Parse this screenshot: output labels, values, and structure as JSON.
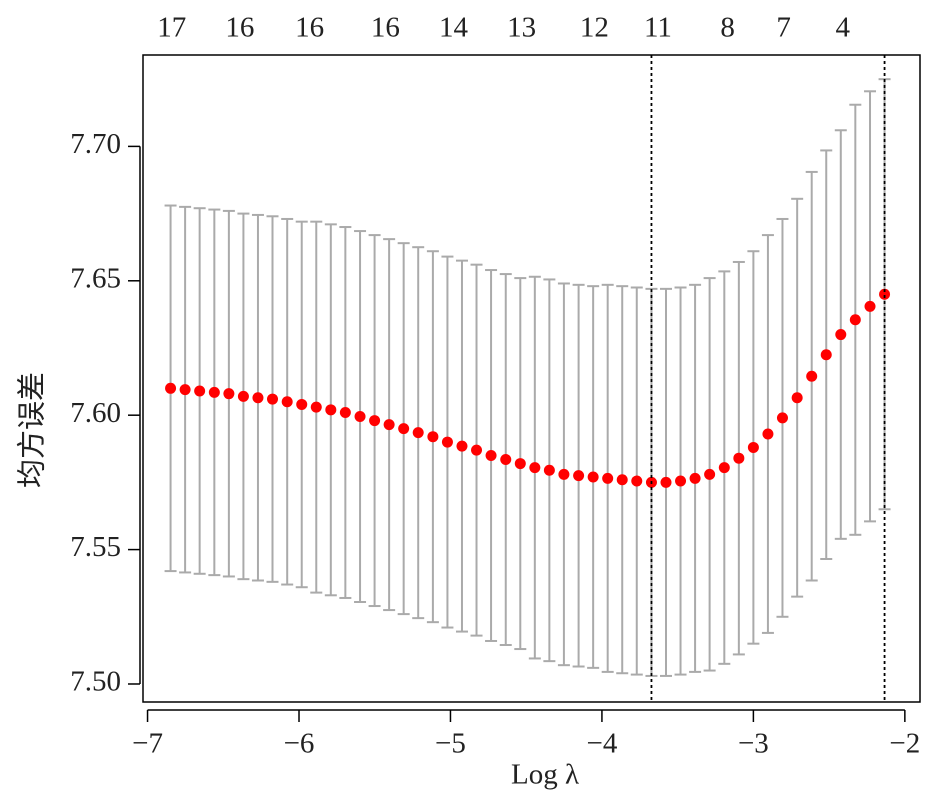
{
  "chart_data": {
    "type": "errorbar_scatter",
    "xlabel": "Log λ",
    "ylabel": "均方误差",
    "x": [
      -6.848,
      -6.752,
      -6.656,
      -6.559,
      -6.463,
      -6.367,
      -6.271,
      -6.175,
      -6.078,
      -5.982,
      -5.886,
      -5.79,
      -5.694,
      -5.597,
      -5.501,
      -5.405,
      -5.309,
      -5.213,
      -5.116,
      -5.02,
      -4.924,
      -4.828,
      -4.732,
      -4.635,
      -4.539,
      -4.443,
      -4.347,
      -4.251,
      -4.154,
      -4.058,
      -3.962,
      -3.866,
      -3.77,
      -3.673,
      -3.577,
      -3.481,
      -3.385,
      -3.289,
      -3.192,
      -3.096,
      -3.0,
      -2.904,
      -2.808,
      -2.711,
      -2.615,
      -2.519,
      -2.423,
      -2.327,
      -2.23,
      -2.134
    ],
    "series": [
      {
        "color": "#ff0000",
        "error_color": "#aaaaaa",
        "values": [
          7.61,
          7.6095,
          7.609,
          7.6085,
          7.608,
          7.607,
          7.6065,
          7.606,
          7.605,
          7.604,
          7.603,
          7.602,
          7.601,
          7.5995,
          7.598,
          7.5965,
          7.595,
          7.5935,
          7.592,
          7.59,
          7.5885,
          7.587,
          7.585,
          7.5835,
          7.582,
          7.5805,
          7.5795,
          7.578,
          7.5775,
          7.577,
          7.5765,
          7.576,
          7.5755,
          7.575,
          7.575,
          7.5755,
          7.5765,
          7.578,
          7.5805,
          7.584,
          7.588,
          7.593,
          7.599,
          7.6065,
          7.6145,
          7.6225,
          7.63,
          7.6355,
          7.6405,
          7.645
        ],
        "errors": [
          0.068,
          0.068,
          0.068,
          0.068,
          0.068,
          0.068,
          0.068,
          0.068,
          0.068,
          0.068,
          0.069,
          0.069,
          0.069,
          0.069,
          0.069,
          0.069,
          0.069,
          0.069,
          0.069,
          0.069,
          0.069,
          0.069,
          0.069,
          0.069,
          0.069,
          0.071,
          0.071,
          0.071,
          0.071,
          0.071,
          0.072,
          0.072,
          0.072,
          0.072,
          0.072,
          0.072,
          0.072,
          0.073,
          0.073,
          0.073,
          0.073,
          0.074,
          0.074,
          0.074,
          0.076,
          0.076,
          0.076,
          0.08,
          0.08,
          0.08
        ]
      }
    ],
    "vlines": [
      -3.673,
      -2.134
    ],
    "xlim": [
      -7.03,
      -1.9
    ],
    "ylim": [
      7.4933,
      7.734
    ],
    "xticks": [
      {
        "value": -7,
        "label": "−7"
      },
      {
        "value": -6,
        "label": "−6"
      },
      {
        "value": -5,
        "label": "−5"
      },
      {
        "value": -4,
        "label": "−4"
      },
      {
        "value": -3,
        "label": "−3"
      },
      {
        "value": -2,
        "label": "−2"
      }
    ],
    "yticks": [
      {
        "value": 7.5,
        "label": "7.50"
      },
      7.55,
      {
        "value": 7.6,
        "label": "7.60"
      },
      7.65,
      {
        "value": 7.7,
        "label": "7.70"
      }
    ],
    "x2ticks": [
      {
        "value": -6.84,
        "label": "17"
      },
      {
        "value": -6.39,
        "label": "16"
      },
      {
        "value": -5.93,
        "label": "16"
      },
      {
        "value": -5.43,
        "label": "16"
      },
      {
        "value": -4.98,
        "label": "14"
      },
      {
        "value": -4.53,
        "label": "13"
      },
      {
        "value": -4.05,
        "label": "12"
      },
      {
        "value": -3.63,
        "label": "11"
      },
      {
        "value": -3.17,
        "label": "8"
      },
      {
        "value": -2.8,
        "label": "7"
      },
      {
        "value": -2.41,
        "label": "4"
      }
    ]
  }
}
